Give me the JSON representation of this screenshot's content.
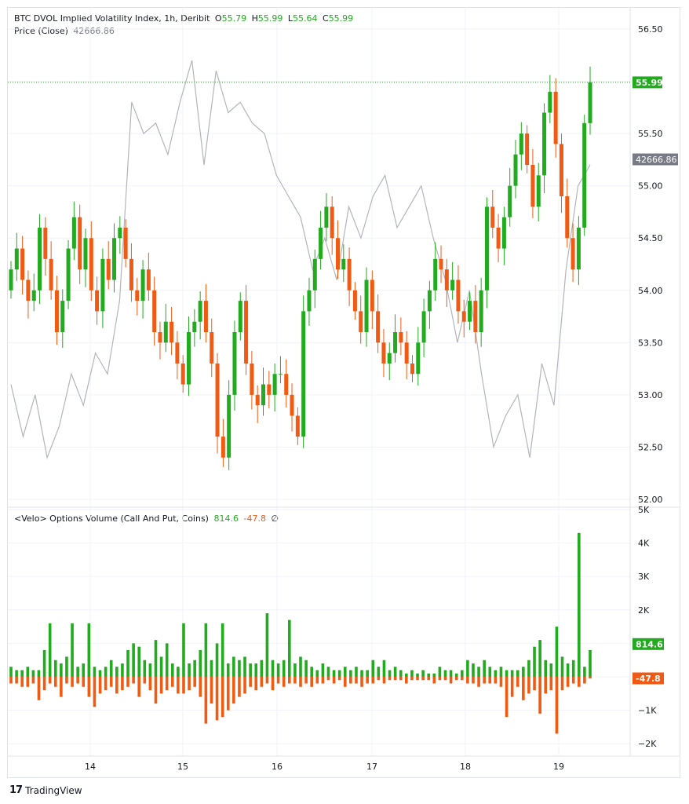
{
  "legend_main": {
    "title": "BTC DVOL Implied Volatility Index, 1h, Deribit",
    "o_label": "O",
    "o_value": "55.79",
    "h_label": "H",
    "h_value": "55.99",
    "l_label": "L",
    "l_value": "55.64",
    "c_label": "C",
    "c_value": "55.99",
    "price_label": "Price (Close)",
    "price_value": "42666.86"
  },
  "legend_sub": {
    "title": "<Velo> Options Volume (Call And Put, Coins)",
    "call_value": "814.6",
    "put_value": "-47.8",
    "extra": "∅"
  },
  "badges": {
    "last_dvol": "55.99",
    "last_price": "42666.86",
    "last_call": "814.6",
    "last_put": "-47.8"
  },
  "colors": {
    "up": "#22ab1f",
    "down": "#f05a12",
    "price_line": "#b2b5be",
    "grid": "#f0f3fa"
  },
  "branding": "TradingView",
  "chart_data": [
    {
      "type": "candlestick",
      "series_name": "BTC DVOL Implied Volatility Index, 1h, Deribit",
      "ylim": [
        52.0,
        56.6
      ],
      "y_ticks": [
        "52.00",
        "52.50",
        "53.00",
        "53.50",
        "54.00",
        "54.50",
        "55.00",
        "55.50",
        "56.00",
        "56.50"
      ],
      "x_ticks": [
        "14",
        "15",
        "16",
        "17",
        "18",
        "19"
      ],
      "close_path": [
        54.2,
        54.4,
        54.1,
        53.9,
        54.0,
        54.6,
        54.3,
        54.0,
        53.6,
        53.9,
        54.4,
        54.7,
        54.2,
        54.5,
        54.0,
        53.8,
        54.3,
        54.1,
        54.5,
        54.6,
        54.3,
        54.0,
        53.9,
        54.2,
        54.0,
        53.6,
        53.5,
        53.7,
        53.5,
        53.3,
        53.1,
        53.6,
        53.7,
        53.9,
        53.6,
        53.3,
        52.6,
        52.4,
        53.0,
        53.6,
        53.9,
        53.3,
        53.0,
        52.9,
        53.1,
        53.0,
        53.2,
        53.2,
        53.0,
        52.8,
        52.6,
        53.8,
        54.0,
        54.3,
        54.6,
        54.8,
        54.5,
        54.2,
        54.3,
        54.0,
        53.8,
        53.6,
        54.1,
        53.8,
        53.5,
        53.3,
        53.4,
        53.6,
        53.5,
        53.3,
        53.2,
        53.5,
        53.8,
        54.0,
        54.3,
        54.2,
        54.0,
        54.1,
        53.8,
        53.7,
        53.9,
        53.6,
        54.0,
        54.8,
        54.6,
        54.4,
        54.7,
        55.0,
        55.3,
        55.5,
        55.2,
        54.8,
        55.1,
        55.7,
        55.9,
        55.4,
        54.9,
        54.5,
        54.2,
        54.6,
        55.6,
        55.99
      ],
      "price_close_path": [
        53.1,
        52.6,
        53.0,
        52.4,
        52.7,
        53.2,
        52.9,
        53.4,
        53.2,
        53.9,
        55.8,
        55.5,
        55.6,
        55.3,
        55.8,
        56.2,
        55.2,
        56.1,
        55.7,
        55.8,
        55.6,
        55.5,
        55.1,
        54.9,
        54.7,
        54.2,
        54.5,
        54.1,
        54.8,
        54.5,
        54.9,
        55.1,
        54.6,
        54.8,
        55.0,
        54.5,
        54.1,
        53.5,
        54.0,
        53.2,
        52.5,
        52.8,
        53.0,
        52.4,
        53.3,
        52.9,
        54.2,
        55.0,
        55.2
      ],
      "price_last": 42666.86,
      "price_scale_note": "price line on separate hidden scale"
    },
    {
      "type": "bar",
      "series": [
        {
          "name": "Call",
          "last": 814.6
        },
        {
          "name": "Put",
          "last": -47.8
        }
      ],
      "ylim": [
        -2.3,
        5
      ],
      "y_ticks": [
        "5K",
        "4K",
        "3K",
        "2K",
        "1K",
        "814.6",
        "0",
        "−1K",
        "−2K"
      ],
      "y_tick_values": [
        5,
        4,
        3,
        2,
        1,
        0,
        -1,
        -2
      ],
      "calls": [
        0.3,
        0.2,
        0.2,
        0.3,
        0.2,
        0.2,
        0.8,
        1.6,
        0.5,
        0.4,
        0.6,
        1.6,
        0.3,
        0.4,
        1.6,
        0.3,
        0.2,
        0.3,
        0.5,
        0.3,
        0.4,
        0.8,
        1.0,
        0.9,
        0.5,
        0.4,
        1.1,
        0.6,
        1.0,
        0.4,
        0.3,
        1.6,
        0.4,
        0.5,
        0.8,
        1.6,
        0.5,
        1.0,
        1.6,
        0.4,
        0.6,
        0.5,
        0.6,
        0.4,
        0.4,
        0.5,
        1.9,
        0.5,
        0.4,
        0.5,
        1.7,
        0.4,
        0.6,
        0.5,
        0.3,
        0.2,
        0.4,
        0.3,
        0.2,
        0.2,
        0.3,
        0.2,
        0.3,
        0.2,
        0.2,
        0.5,
        0.3,
        0.5,
        0.2,
        0.3,
        0.2,
        0.1,
        0.2,
        0.1,
        0.2,
        0.1,
        0.1,
        0.3,
        0.2,
        0.2,
        0.1,
        0.2,
        0.5,
        0.4,
        0.3,
        0.5,
        0.3,
        0.2,
        0.3,
        0.2,
        0.2,
        0.2,
        0.3,
        0.5,
        0.9,
        1.1,
        0.5,
        0.4,
        1.5,
        0.6,
        0.4,
        0.5,
        4.3,
        0.3,
        0.8
      ],
      "puts": [
        -0.2,
        -0.2,
        -0.3,
        -0.3,
        -0.2,
        -0.7,
        -0.4,
        -0.2,
        -0.3,
        -0.6,
        -0.2,
        -0.3,
        -0.2,
        -0.3,
        -0.6,
        -0.9,
        -0.5,
        -0.4,
        -0.3,
        -0.5,
        -0.4,
        -0.3,
        -0.2,
        -0.6,
        -0.2,
        -0.4,
        -0.8,
        -0.5,
        -0.4,
        -0.3,
        -0.5,
        -0.5,
        -0.4,
        -0.3,
        -0.6,
        -1.4,
        -0.8,
        -1.3,
        -1.2,
        -1.0,
        -0.8,
        -0.6,
        -0.5,
        -0.3,
        -0.4,
        -0.3,
        -0.2,
        -0.4,
        -0.2,
        -0.3,
        -0.2,
        -0.2,
        -0.3,
        -0.2,
        -0.3,
        -0.2,
        -0.2,
        -0.1,
        -0.2,
        -0.1,
        -0.3,
        -0.2,
        -0.2,
        -0.3,
        -0.2,
        -0.2,
        -0.1,
        -0.2,
        -0.1,
        -0.1,
        -0.1,
        -0.2,
        -0.1,
        -0.1,
        -0.1,
        -0.1,
        -0.2,
        -0.1,
        -0.1,
        -0.2,
        -0.1,
        -0.1,
        -0.2,
        -0.2,
        -0.3,
        -0.2,
        -0.2,
        -0.2,
        -0.3,
        -1.2,
        -0.6,
        -0.3,
        -0.7,
        -0.5,
        -0.4,
        -1.1,
        -0.5,
        -0.4,
        -1.7,
        -0.4,
        -0.3,
        -0.2,
        -0.3,
        -0.2,
        -0.05
      ]
    }
  ]
}
